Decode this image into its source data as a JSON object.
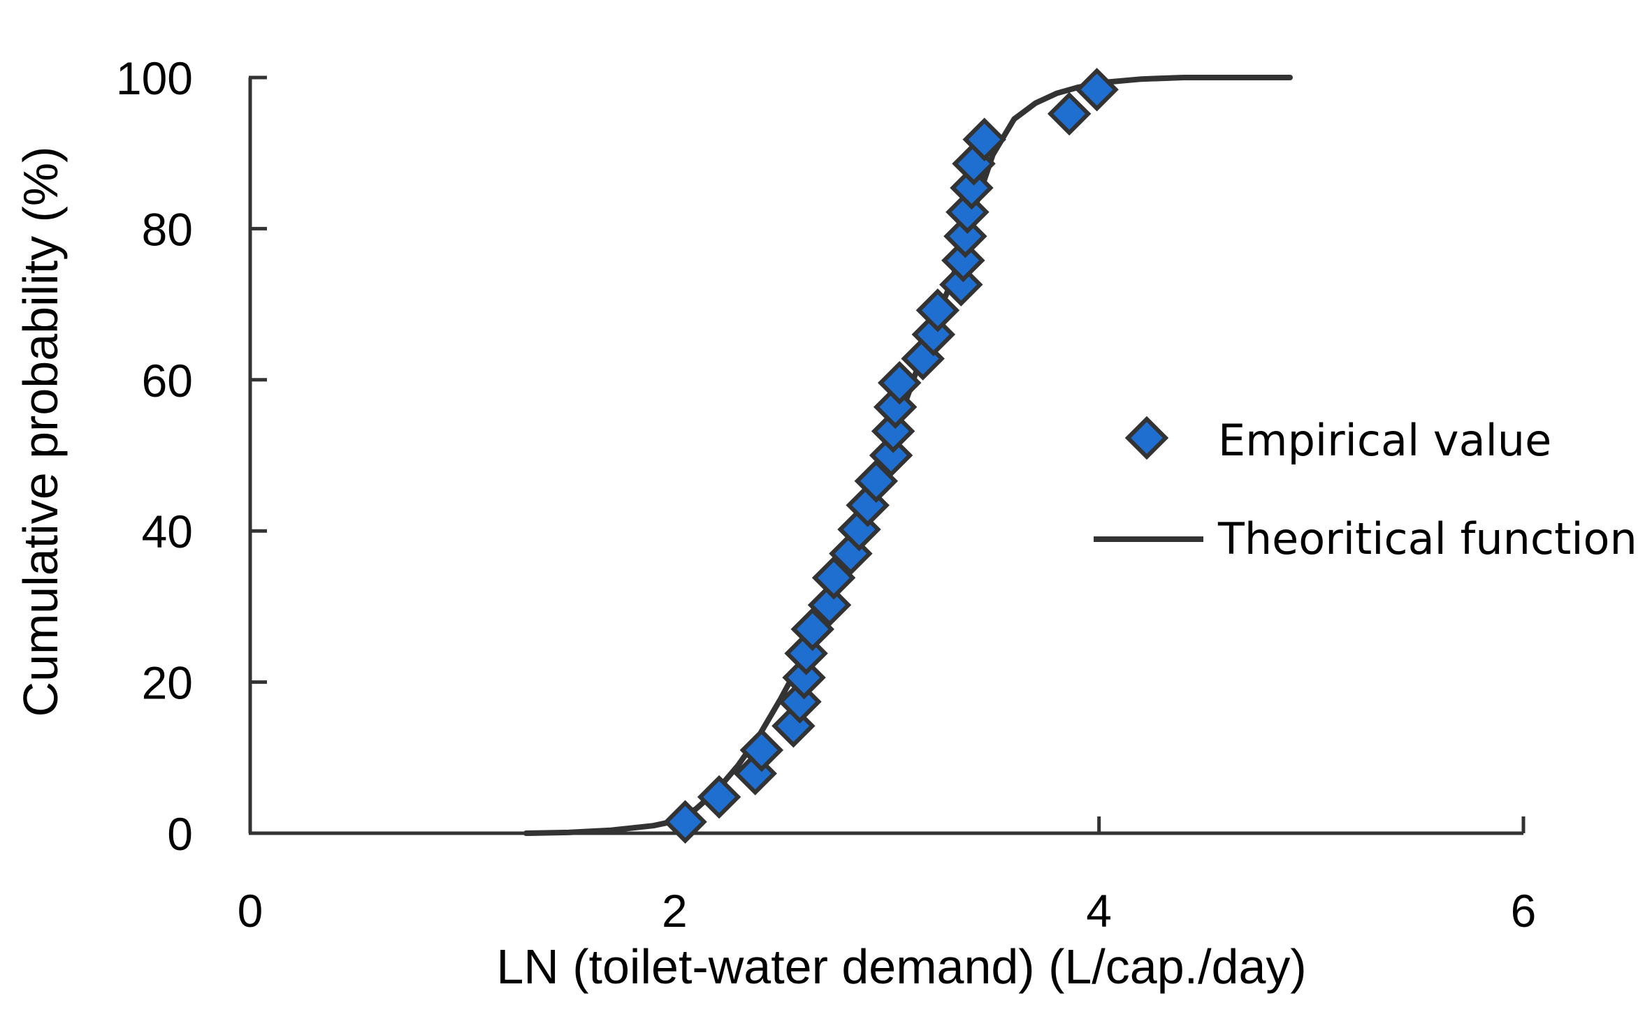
{
  "chart_data": {
    "type": "scatter",
    "title": "",
    "xlabel": "LN (toilet-water demand) (L/cap./day)",
    "ylabel": "Cumulative probability (%)",
    "xlim": [
      0,
      6
    ],
    "ylim": [
      0,
      100
    ],
    "x_ticks": [
      "0",
      "2",
      "4",
      "6"
    ],
    "y_ticks": [
      "0",
      "20",
      "40",
      "60",
      "80",
      "100"
    ],
    "grid": false,
    "legend_position": "right",
    "series": [
      {
        "name": "Empirical value",
        "kind": "scatter",
        "marker": "diamond",
        "color": "#1f6fd1",
        "edge_color": "#333333",
        "x": [
          2.05,
          2.21,
          2.38,
          2.41,
          2.56,
          2.59,
          2.61,
          2.62,
          2.65,
          2.73,
          2.75,
          2.83,
          2.87,
          2.91,
          2.95,
          3.02,
          3.03,
          3.04,
          3.06,
          3.17,
          3.22,
          3.24,
          3.35,
          3.36,
          3.37,
          3.38,
          3.4,
          3.41,
          3.46,
          3.86,
          3.99
        ],
        "y": [
          1.5,
          4.8,
          7.9,
          11.0,
          14.2,
          17.4,
          20.6,
          23.8,
          27.0,
          30.2,
          33.8,
          37.0,
          40.2,
          43.4,
          46.6,
          50.0,
          53.2,
          56.4,
          59.6,
          62.8,
          66.0,
          69.2,
          72.6,
          75.8,
          79.0,
          82.2,
          85.4,
          88.6,
          91.8,
          95.2,
          98.4
        ]
      },
      {
        "name": "Theoritical function",
        "kind": "line",
        "color": "#333333",
        "x": [
          1.3,
          1.5,
          1.7,
          1.9,
          2.0,
          2.1,
          2.2,
          2.3,
          2.4,
          2.5,
          2.6,
          2.7,
          2.8,
          2.9,
          3.0,
          3.1,
          3.2,
          3.3,
          3.4,
          3.5,
          3.6,
          3.7,
          3.8,
          3.9,
          4.0,
          4.2,
          4.4,
          4.6,
          4.9
        ],
        "y": [
          0.0,
          0.1,
          0.4,
          1.0,
          1.6,
          3.2,
          5.7,
          9.0,
          13.0,
          17.8,
          23.0,
          29.5,
          36.0,
          43.2,
          50.5,
          58.0,
          66.0,
          72.6,
          81.5,
          89.8,
          94.5,
          96.6,
          97.9,
          98.7,
          99.3,
          99.8,
          100.0,
          100.0,
          100.0
        ]
      }
    ]
  },
  "colors": {
    "marker_fill": "#1f6fd1",
    "marker_edge": "#333333",
    "line": "#333333",
    "axis": "#333333"
  }
}
